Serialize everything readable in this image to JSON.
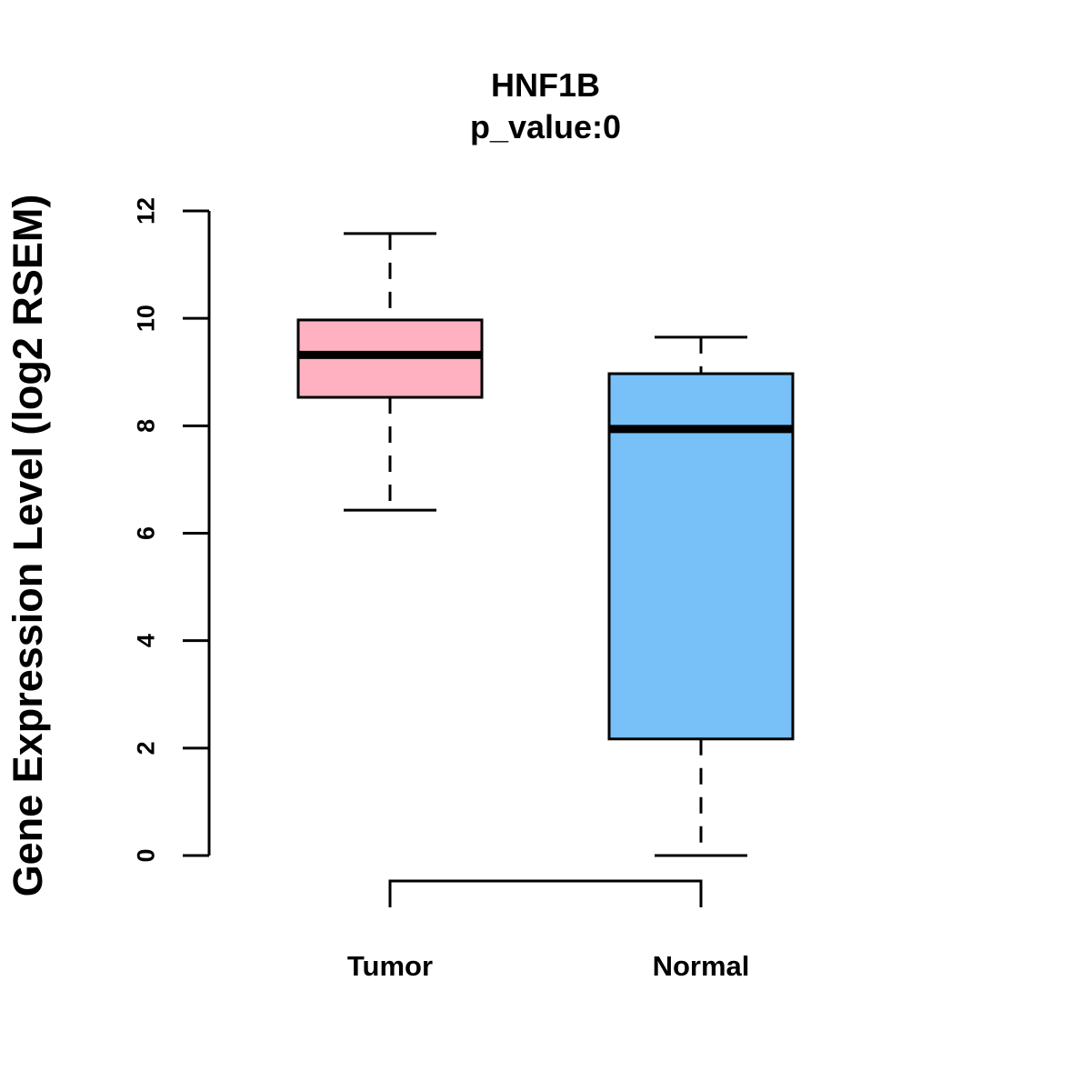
{
  "chart_data": {
    "type": "box",
    "title": "HNF1B",
    "subtitle": "p_value:0",
    "xlabel": "",
    "ylabel": "Gene Expression Level (log2 RSEM)",
    "ylim": [
      0,
      12
    ],
    "yticks": [
      0,
      2,
      4,
      6,
      8,
      10,
      12
    ],
    "grid": false,
    "legend": "none",
    "categories": [
      "Tumor",
      "Normal"
    ],
    "boxes": [
      {
        "category": "Tumor",
        "whisker_low": 6.43,
        "q1": 8.53,
        "median": 9.32,
        "q3": 9.97,
        "whisker_high": 11.58,
        "color": "#FFB1C1"
      },
      {
        "category": "Normal",
        "whisker_low": 0.0,
        "q1": 2.17,
        "median": 7.94,
        "q3": 8.97,
        "whisker_high": 9.65,
        "color": "#77C0F8"
      }
    ],
    "comparison_bracket": {
      "between": [
        "Tumor",
        "Normal"
      ]
    }
  }
}
